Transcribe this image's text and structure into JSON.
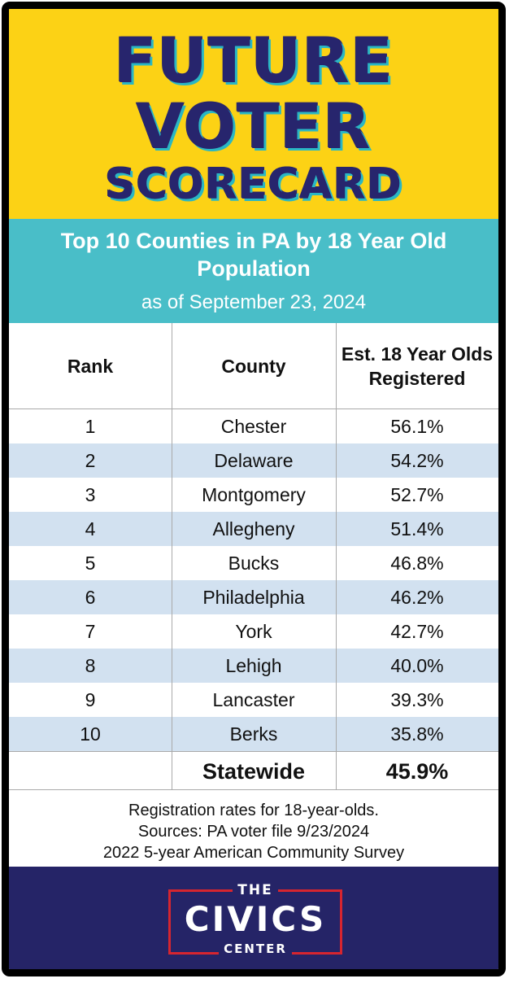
{
  "header": {
    "line1": "FUTURE",
    "line2": "VOTER",
    "line3": "SCORECARD"
  },
  "subtitle": "Top 10 Counties in PA by 18 Year Old Population",
  "date": "as of September 23, 2024",
  "table": {
    "headers": [
      "Rank",
      "County",
      "Est. 18 Year Olds Registered"
    ],
    "rows": [
      {
        "rank": "1",
        "county": "Chester",
        "value": "56.1%"
      },
      {
        "rank": "2",
        "county": "Delaware",
        "value": "54.2%"
      },
      {
        "rank": "3",
        "county": "Montgomery",
        "value": "52.7%"
      },
      {
        "rank": "4",
        "county": "Allegheny",
        "value": "51.4%"
      },
      {
        "rank": "5",
        "county": "Bucks",
        "value": "46.8%"
      },
      {
        "rank": "6",
        "county": "Philadelphia",
        "value": "46.2%"
      },
      {
        "rank": "7",
        "county": "York",
        "value": "42.7%"
      },
      {
        "rank": "8",
        "county": "Lehigh",
        "value": "40.0%"
      },
      {
        "rank": "9",
        "county": "Lancaster",
        "value": "39.3%"
      },
      {
        "rank": "10",
        "county": "Berks",
        "value": "35.8%"
      }
    ],
    "total": {
      "label": "Statewide",
      "value": "45.9%"
    }
  },
  "notes": [
    "Registration rates for 18-year-olds.",
    "Sources: PA voter file 9/23/2024",
    "2022 5-year American Community Survey"
  ],
  "logo": {
    "top": "THE",
    "main": "CIVICS",
    "bottom": "CENTER"
  },
  "colors": {
    "header_bg": "#fcd215",
    "header_text": "#27256d",
    "header_shadow": "#2ab7c4",
    "subtitle_bg": "#49bec8",
    "alt_row": "#d2e1f0",
    "footer_bg": "#252467",
    "logo_frame": "#d6252f"
  }
}
